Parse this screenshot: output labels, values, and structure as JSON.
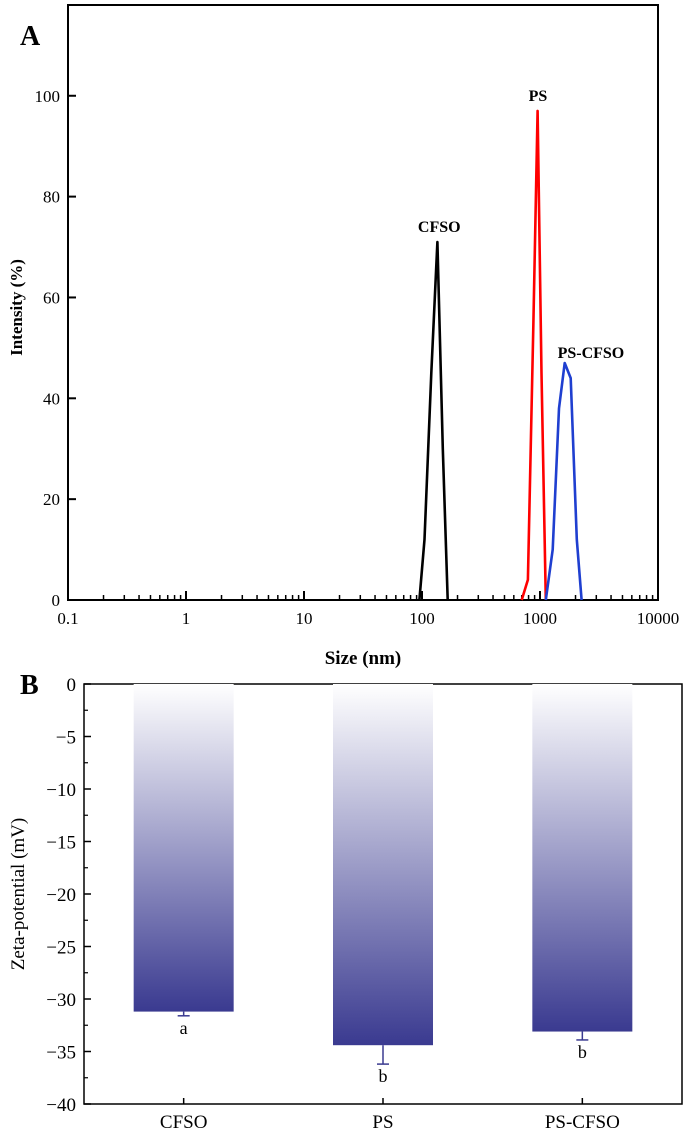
{
  "chart_data": [
    {
      "panel": "A",
      "type": "line",
      "xlabel": "Size (nm)",
      "ylabel": "Intensity (%)",
      "x_scale": "log",
      "xlim": [
        0.1,
        10000
      ],
      "ylim": [
        0,
        118
      ],
      "x_ticks": [
        0.1,
        1,
        10,
        100,
        1000,
        10000
      ],
      "x_tick_labels": [
        "0.1",
        "1",
        "10",
        "100",
        "1000",
        "10000"
      ],
      "y_ticks": [
        0,
        20,
        40,
        60,
        80,
        100
      ],
      "y_tick_labels": [
        "0",
        "20",
        "40",
        "60",
        "80",
        "100"
      ],
      "grid": false,
      "series": [
        {
          "name": "CFSO",
          "color": "#000000",
          "x": [
            95,
            105,
            120,
            135,
            150,
            165
          ],
          "y": [
            0,
            12,
            45,
            71,
            30,
            0
          ],
          "label_at": [
            140,
            73
          ]
        },
        {
          "name": "PS",
          "color": "#ff0000",
          "x": [
            700,
            790,
            880,
            955,
            1030,
            1120
          ],
          "y": [
            0,
            4,
            55,
            97,
            45,
            0
          ],
          "label_at": [
            960,
            99
          ]
        },
        {
          "name": "PS-CFSO",
          "color": "#1f3fd0",
          "x": [
            1120,
            1280,
            1450,
            1620,
            1820,
            2050,
            2250
          ],
          "y": [
            0,
            10,
            38,
            47,
            44,
            12,
            0
          ],
          "label_at": [
            2700,
            48
          ]
        }
      ]
    },
    {
      "panel": "B",
      "type": "bar",
      "ylabel": "Zeta-potential (mV)",
      "categories": [
        "CFSO",
        "PS",
        "PS-CFSO"
      ],
      "values": [
        -31.2,
        -34.4,
        -33.1
      ],
      "errors": [
        0.4,
        1.8,
        0.8
      ],
      "significance": [
        "a",
        "b",
        "b"
      ],
      "ylim": [
        -40,
        0
      ],
      "y_ticks": [
        0,
        -5,
        -10,
        -15,
        -20,
        -25,
        -30,
        -35,
        -40
      ],
      "y_tick_labels": [
        "0",
        "−5",
        "−10",
        "−15",
        "−20",
        "−25",
        "−30",
        "−35",
        "−40"
      ],
      "bar_color_top": "#ffffff",
      "bar_color_bottom": "#3a3a90",
      "error_color": "#3a3a90",
      "grid": false
    }
  ],
  "panel_labels": {
    "a": "A",
    "b": "B"
  }
}
